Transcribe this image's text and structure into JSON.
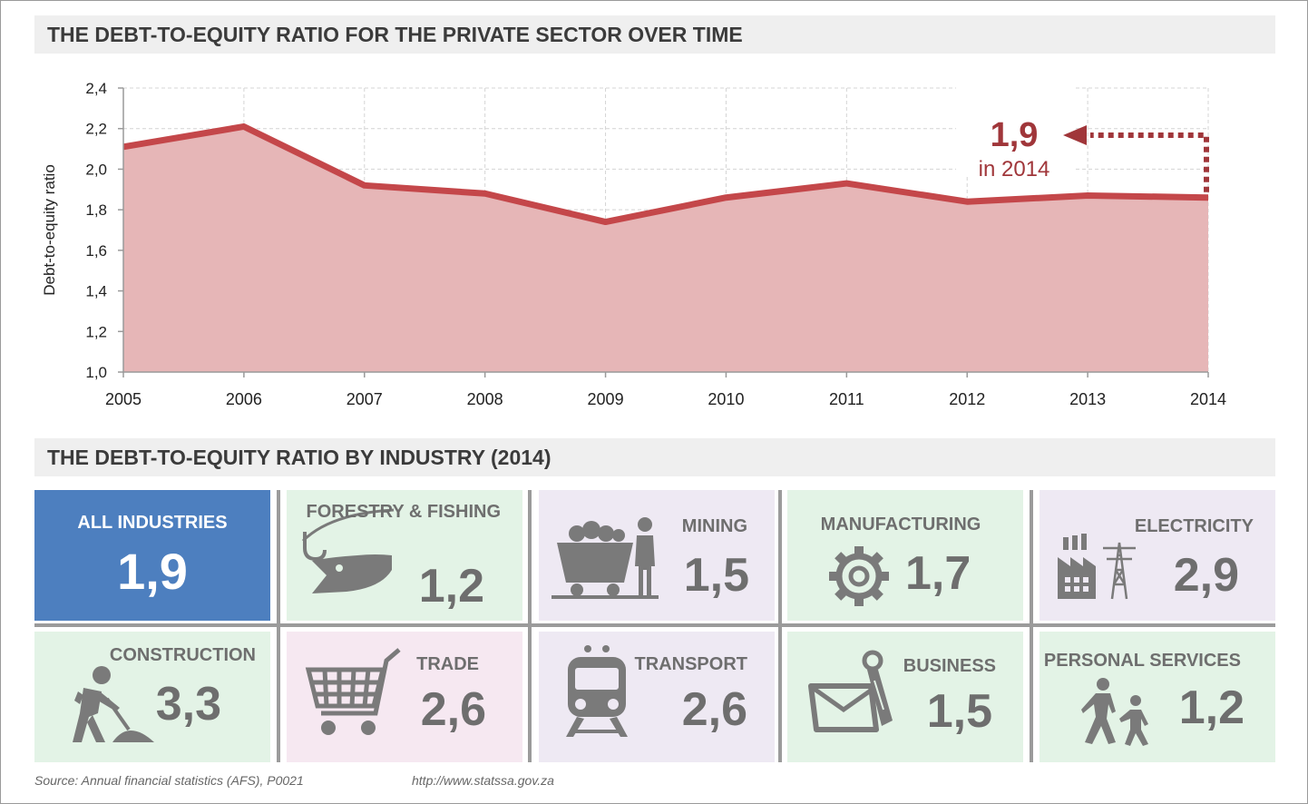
{
  "header1": "THE DEBT-TO-EQUITY RATIO FOR THE PRIVATE SECTOR OVER TIME",
  "header2": "THE DEBT-TO-EQUITY RATIO BY INDUSTRY (2014)",
  "chart_data": {
    "type": "area",
    "title": "THE DEBT-TO-EQUITY RATIO FOR THE PRIVATE SECTOR OVER TIME",
    "xlabel": "",
    "ylabel": "Debt-to-equity ratio",
    "x": [
      "2005",
      "2006",
      "2007",
      "2008",
      "2009",
      "2010",
      "2011",
      "2012",
      "2013",
      "2014"
    ],
    "series": [
      {
        "name": "Debt-to-equity ratio",
        "values": [
          2.11,
          2.21,
          1.92,
          1.88,
          1.74,
          1.86,
          1.93,
          1.84,
          1.87,
          1.86
        ]
      }
    ],
    "ylim": [
      1.0,
      2.4
    ],
    "yticks": [
      "1,0",
      "1,2",
      "1,4",
      "1,6",
      "1,8",
      "2,0",
      "2,2",
      "2,4"
    ],
    "grid": true,
    "colors": {
      "line": "#c4474a",
      "fill": "#e6b6b7",
      "annotation": "#a0363a"
    },
    "annotation": {
      "value": "1,9",
      "text": "in 2014"
    }
  },
  "industries": [
    {
      "label": "ALL INDUSTRIES",
      "value": "1,9",
      "icon": "none"
    },
    {
      "label": "FORESTRY & FISHING",
      "value": "1,2",
      "icon": "fish-hook-icon"
    },
    {
      "label": "MINING",
      "value": "1,5",
      "icon": "mine-cart-icon"
    },
    {
      "label": "MANUFACTURING",
      "value": "1,7",
      "icon": "gear-icon"
    },
    {
      "label": "ELECTRICITY",
      "value": "2,9",
      "icon": "power-plant-icon"
    },
    {
      "label": "CONSTRUCTION",
      "value": "3,3",
      "icon": "digging-worker-icon"
    },
    {
      "label": "TRADE",
      "value": "2,6",
      "icon": "shopping-cart-icon"
    },
    {
      "label": "TRANSPORT",
      "value": "2,6",
      "icon": "train-icon"
    },
    {
      "label": "BUSINESS",
      "value": "1,5",
      "icon": "briefcase-tie-icon"
    },
    {
      "label": "PERSONAL SERVICES",
      "value": "1,2",
      "icon": "parent-child-icon"
    }
  ],
  "footer": {
    "source": "Source: Annual financial statistics (AFS), P0021",
    "url": "http://www.statssa.gov.za"
  }
}
